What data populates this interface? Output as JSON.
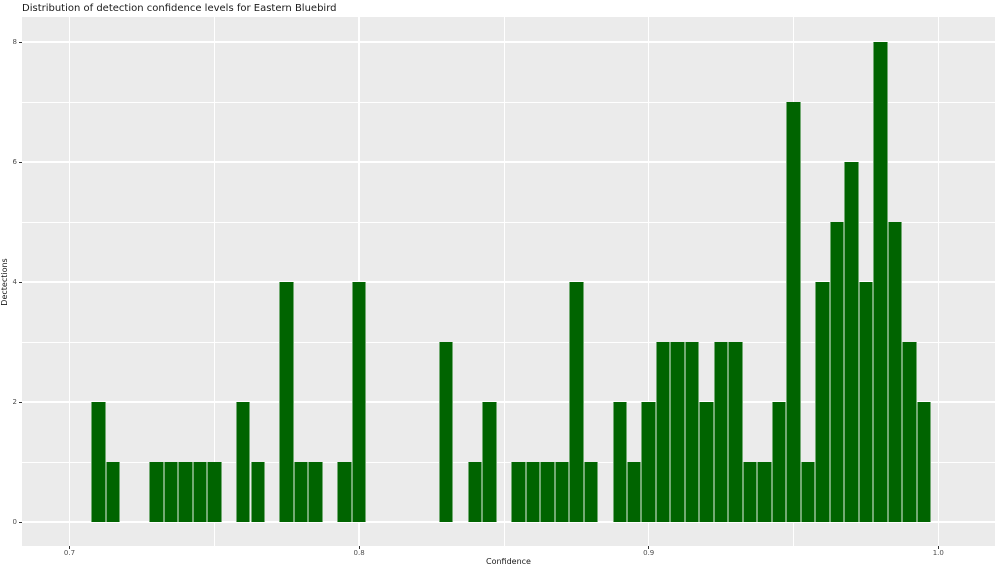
{
  "chart_data": {
    "type": "bar",
    "subtype": "histogram",
    "title": "Distribution of detection confidence levels for Eastern Bluebird",
    "xlabel": "Confidence",
    "ylabel": "Dectections",
    "bin_width": 0.005,
    "bin_centers": [
      0.71,
      0.715,
      0.73,
      0.735,
      0.74,
      0.745,
      0.75,
      0.76,
      0.765,
      0.775,
      0.78,
      0.785,
      0.795,
      0.8,
      0.83,
      0.84,
      0.845,
      0.855,
      0.86,
      0.865,
      0.87,
      0.875,
      0.88,
      0.89,
      0.895,
      0.9,
      0.905,
      0.91,
      0.915,
      0.92,
      0.925,
      0.93,
      0.935,
      0.94,
      0.945,
      0.95,
      0.955,
      0.96,
      0.965,
      0.97,
      0.975,
      0.98,
      0.985,
      0.99,
      0.995
    ],
    "counts": [
      2,
      1,
      1,
      1,
      1,
      1,
      1,
      2,
      1,
      4,
      1,
      1,
      1,
      4,
      3,
      1,
      2,
      1,
      1,
      1,
      1,
      4,
      1,
      2,
      1,
      2,
      3,
      3,
      3,
      2,
      3,
      3,
      1,
      1,
      2,
      7,
      1,
      4,
      5,
      6,
      4,
      8,
      5,
      3,
      2
    ],
    "x_ticks": [
      0.7,
      0.8,
      0.9,
      1.0
    ],
    "x_tick_labels": [
      "0.7",
      "0.8",
      "0.9",
      "1.0"
    ],
    "x_minor_ticks": [
      0.75,
      0.85,
      0.95
    ],
    "y_ticks": [
      0,
      2,
      4,
      6,
      8
    ],
    "y_tick_labels": [
      "0",
      "2",
      "4",
      "6",
      "8"
    ],
    "y_minor_ticks": [
      1,
      3,
      5,
      7
    ],
    "xlim": [
      0.6836,
      1.0196
    ],
    "ylim": [
      -0.4,
      8.4
    ],
    "grid": true,
    "legend": "none",
    "colors": {
      "bar_fill": "#006400",
      "panel_background": "#EBEBEB",
      "grid_major": "#FFFFFF",
      "grid_minor": "#FFFFFF",
      "tick_label": "#4D4D4D",
      "axis_title": "#1A1A1A",
      "figure_background": "#FFFFFF"
    }
  }
}
